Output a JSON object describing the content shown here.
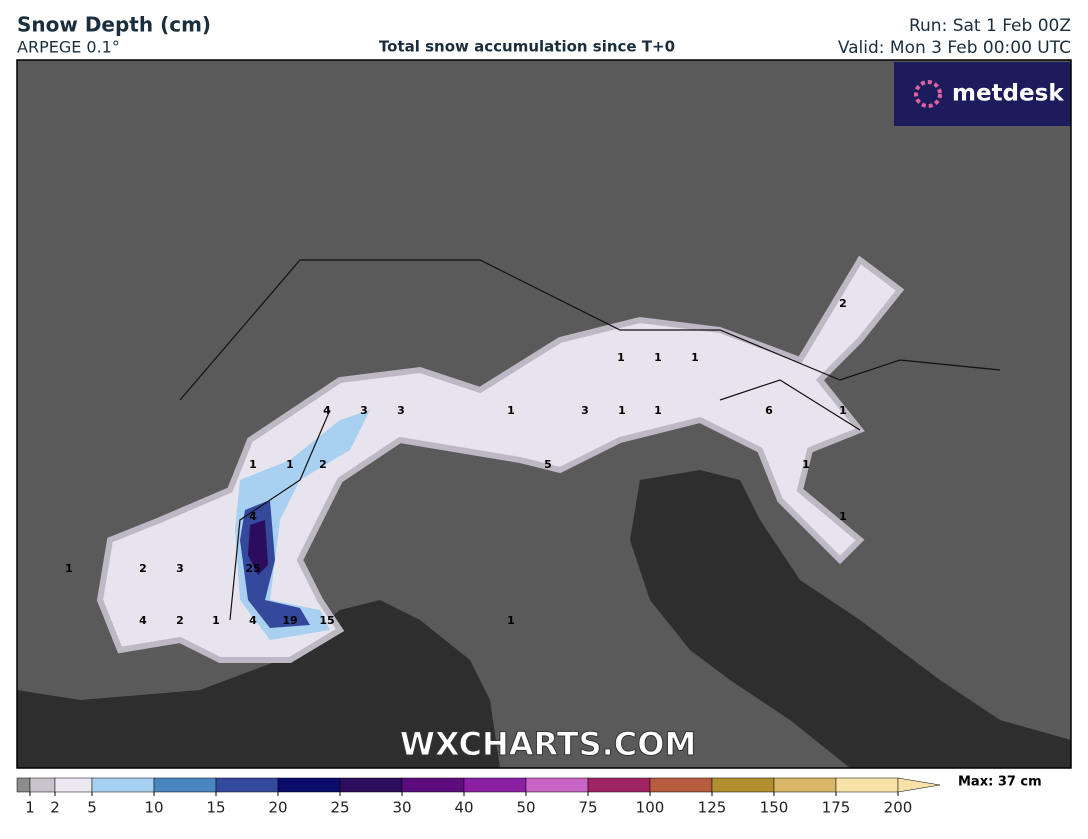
{
  "header": {
    "title": "Snow Depth (cm)",
    "model": "ARPEGE 0.1°",
    "caption": "Total snow accumulation since T+0",
    "run": "Run: Sat 1 Feb 00Z",
    "valid": "Valid: Mon 3 Feb 00:00 UTC"
  },
  "logo": "metdesk",
  "watermark": "WXCHARTS.COM",
  "map_labels": [
    2,
    1,
    1,
    1,
    4,
    3,
    3,
    1,
    3,
    1,
    1,
    6,
    1,
    1,
    1,
    2,
    5,
    1,
    4,
    1,
    1,
    2,
    3,
    25,
    4,
    2,
    1,
    4,
    19,
    15,
    1
  ],
  "colorbar": {
    "ticks": [
      1,
      2,
      5,
      10,
      15,
      20,
      25,
      30,
      40,
      50,
      75,
      100,
      125,
      150,
      175,
      200
    ],
    "colors": [
      "#8c8c8c",
      "#c8c4cc",
      "#ece8f2",
      "#a8d0f0",
      "#4a86c0",
      "#34489c",
      "#0c0c6c",
      "#2c0c5c",
      "#5c0c7c",
      "#8c20a4",
      "#c864c4",
      "#a02464",
      "#b85c40",
      "#b09030",
      "#d8b868",
      "#f8e2a8"
    ],
    "max": "Max: 37 cm"
  }
}
